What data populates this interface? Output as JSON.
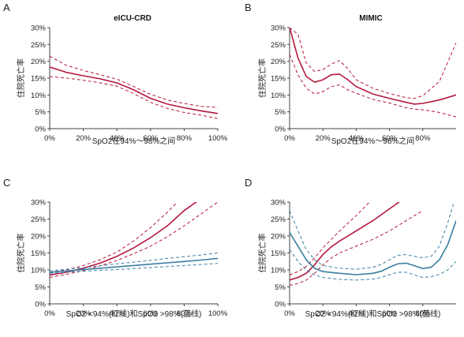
{
  "chart_data": [
    {
      "panel": "A",
      "type": "line",
      "title": "eICU-CRD",
      "xlabel": "SpO2在94%～98%之间",
      "ylabel": "住院死亡率",
      "xlim": [
        0,
        100
      ],
      "ylim": [
        0,
        30
      ],
      "xticks": [
        "0%",
        "20%",
        "40%",
        "60%",
        "80%",
        "100%"
      ],
      "yticks": [
        "0%",
        "5%",
        "10%",
        "15%",
        "20%",
        "25%",
        "30%"
      ],
      "series": [
        {
          "color": "#b5173e",
          "x": [
            0,
            10,
            20,
            30,
            40,
            50,
            60,
            70,
            80,
            90,
            100
          ],
          "y": [
            18.3,
            16.7,
            15.7,
            14.8,
            13.6,
            11.5,
            9.0,
            7.3,
            6.2,
            5.3,
            4.5
          ],
          "lower": [
            15.5,
            15.0,
            14.4,
            13.6,
            12.6,
            10.4,
            7.8,
            6.0,
            4.8,
            4.0,
            3.0
          ],
          "upper": [
            21.5,
            18.8,
            17.3,
            16.0,
            14.7,
            12.5,
            10.2,
            8.5,
            7.5,
            6.6,
            6.3
          ]
        }
      ]
    },
    {
      "panel": "B",
      "type": "line",
      "title": "MIMIC",
      "xlabel": "SpO2在94%～98%之间",
      "ylabel": "住院死亡率",
      "xlim": [
        0,
        100
      ],
      "ylim": [
        0,
        30
      ],
      "xticks": [
        "0%",
        "20%",
        "40%",
        "60%",
        "80%"
      ],
      "yticks": [
        "0%",
        "5%",
        "10%",
        "15%",
        "20%",
        "25%",
        "30%"
      ],
      "series": [
        {
          "color": "#b5173e",
          "x": [
            0,
            5,
            10,
            15,
            20,
            25,
            30,
            35,
            40,
            50,
            60,
            70,
            75,
            80,
            90,
            100
          ],
          "y": [
            30.0,
            21.0,
            15.5,
            13.8,
            14.5,
            16.0,
            16.2,
            14.5,
            12.5,
            10.3,
            9.0,
            7.8,
            7.3,
            7.5,
            8.5,
            10.0
          ],
          "lower": [
            22.0,
            16.0,
            12.0,
            10.3,
            11.0,
            12.5,
            13.0,
            11.5,
            10.5,
            8.7,
            7.6,
            6.2,
            5.8,
            5.6,
            4.8,
            3.5
          ],
          "upper": [
            30.0,
            28.0,
            19.5,
            17.0,
            17.5,
            19.2,
            20.2,
            17.8,
            14.5,
            12.0,
            10.4,
            9.2,
            9.0,
            9.8,
            14.0,
            25.5
          ]
        }
      ]
    },
    {
      "panel": "C",
      "type": "line",
      "title": "",
      "xlabel": "SpO2 <94%(红线)和SpO2 >98%(蓝线)",
      "ylabel": "住院死亡率",
      "xlim": [
        0,
        100
      ],
      "ylim": [
        0,
        30
      ],
      "xticks": [
        "0%",
        "20%",
        "40%",
        "60%",
        "80%",
        "100%"
      ],
      "yticks": [
        "0%",
        "5%",
        "10%",
        "15%",
        "20%",
        "25%",
        "30%"
      ],
      "series": [
        {
          "color": "#b5173e",
          "x": [
            0,
            10,
            20,
            30,
            40,
            50,
            60,
            70,
            80,
            90,
            100
          ],
          "y": [
            8.5,
            9.3,
            10.5,
            12.0,
            14.0,
            16.5,
            19.5,
            23.0,
            27.5,
            31.0,
            31.0
          ],
          "lower": [
            7.8,
            8.7,
            9.8,
            11.2,
            12.8,
            14.8,
            17.0,
            19.8,
            23.0,
            26.5,
            30.0
          ],
          "upper": [
            9.3,
            10.0,
            11.3,
            13.0,
            15.3,
            18.5,
            22.5,
            27.0,
            32.0,
            33.0,
            33.0
          ]
        },
        {
          "color": "#3a7ea1",
          "x": [
            0,
            10,
            20,
            30,
            40,
            50,
            60,
            70,
            80,
            90,
            100
          ],
          "y": [
            9.3,
            9.7,
            10.1,
            10.5,
            10.9,
            11.3,
            11.7,
            12.1,
            12.5,
            12.9,
            13.4
          ],
          "lower": [
            9.0,
            9.3,
            9.6,
            9.9,
            10.1,
            10.4,
            10.7,
            11.0,
            11.3,
            11.6,
            11.9
          ],
          "upper": [
            9.7,
            10.2,
            10.7,
            11.2,
            11.8,
            12.3,
            12.8,
            13.4,
            13.9,
            14.4,
            15.0
          ]
        }
      ]
    },
    {
      "panel": "D",
      "type": "line",
      "title": "",
      "xlabel": "SpO2 <94%(红线)和SpO2 >98%(蓝线)",
      "ylabel": "住院死亡率",
      "xlim": [
        0,
        100
      ],
      "ylim": [
        0,
        30
      ],
      "xticks": [
        "0%",
        "20%",
        "40%",
        "60%",
        "80%"
      ],
      "yticks": [
        "0%",
        "5%",
        "10%",
        "15%",
        "20%",
        "25%",
        "30%"
      ],
      "series": [
        {
          "color": "#b5173e",
          "x": [
            0,
            5,
            10,
            15,
            20,
            25,
            30,
            40,
            50,
            60,
            70,
            80
          ],
          "y": [
            7.0,
            7.8,
            9.0,
            11.5,
            14.5,
            16.8,
            18.5,
            21.5,
            24.5,
            28.0,
            31.5,
            33.0
          ],
          "lower": [
            5.5,
            6.0,
            7.0,
            9.0,
            11.5,
            13.5,
            15.0,
            17.0,
            19.0,
            21.5,
            24.5,
            27.5
          ],
          "upper": [
            8.5,
            9.5,
            11.0,
            13.5,
            16.5,
            19.0,
            21.5,
            26.0,
            31.0,
            33.0,
            33.0,
            33.0
          ]
        },
        {
          "color": "#3a7ea1",
          "x": [
            0,
            5,
            10,
            15,
            20,
            30,
            40,
            50,
            55,
            60,
            65,
            70,
            75,
            80,
            85,
            90,
            95,
            100
          ],
          "y": [
            21.0,
            17.0,
            13.0,
            10.5,
            9.5,
            9.0,
            8.6,
            9.0,
            9.6,
            10.8,
            11.8,
            12.0,
            11.2,
            10.4,
            10.8,
            13.0,
            17.5,
            24.5
          ],
          "lower": [
            16.0,
            12.5,
            10.0,
            8.5,
            7.8,
            7.2,
            7.0,
            7.3,
            7.8,
            8.6,
            9.3,
            9.3,
            8.5,
            7.8,
            8.0,
            8.7,
            10.0,
            12.5
          ],
          "upper": [
            27.5,
            21.5,
            16.0,
            13.0,
            11.3,
            10.5,
            10.2,
            10.8,
            11.6,
            13.0,
            14.3,
            14.5,
            14.0,
            13.6,
            14.0,
            17.0,
            24.0,
            32.0
          ]
        }
      ]
    }
  ]
}
